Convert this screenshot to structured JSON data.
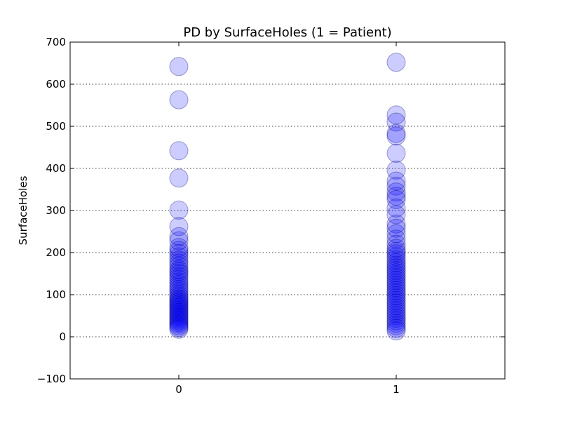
{
  "chart_data": {
    "type": "scatter",
    "title": "PD by SurfaceHoles (1 = Patient)",
    "xlabel": "",
    "ylabel": "SurfaceHoles",
    "xlim": [
      -0.5,
      1.5
    ],
    "ylim": [
      -100,
      700
    ],
    "xticks": [
      0,
      1
    ],
    "xtick_labels": [
      "0",
      "1"
    ],
    "yticks": [
      -100,
      0,
      100,
      200,
      300,
      400,
      500,
      600,
      700
    ],
    "ytick_labels": [
      "−100",
      "0",
      "100",
      "200",
      "300",
      "400",
      "500",
      "600",
      "700"
    ],
    "grid": "horizontal dotted",
    "color": "#0000ff",
    "series": [
      {
        "x": 0,
        "values": [
          642,
          563,
          442,
          377,
          301,
          262,
          238,
          228,
          212,
          205,
          198,
          190,
          182,
          175,
          168,
          160,
          155,
          150,
          143,
          137,
          130,
          124,
          118,
          112,
          106,
          100,
          95,
          90,
          86,
          82,
          78,
          74,
          70,
          66,
          62,
          58,
          54,
          50,
          46,
          42,
          38,
          34,
          30,
          26,
          22,
          18
        ]
      },
      {
        "x": 1,
        "values": [
          652,
          527,
          510,
          483,
          477,
          436,
          396,
          370,
          358,
          344,
          334,
          326,
          306,
          290,
          268,
          258,
          245,
          232,
          220,
          210,
          203,
          197,
          190,
          183,
          176,
          170,
          164,
          158,
          152,
          146,
          140,
          134,
          128,
          122,
          116,
          110,
          104,
          98,
          92,
          86,
          80,
          74,
          68,
          62,
          56,
          50,
          44,
          38,
          32,
          26,
          20,
          14
        ]
      }
    ]
  }
}
